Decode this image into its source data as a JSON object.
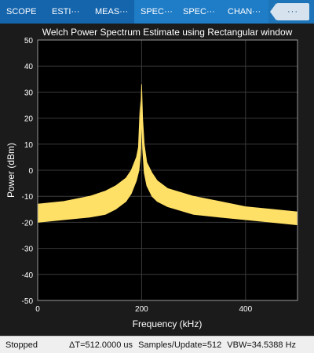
{
  "toolstrip": {
    "tabs": [
      {
        "label": "SCOPE"
      },
      {
        "label": "ESTI···"
      },
      {
        "label": "MEAS···"
      },
      {
        "label": "SPEC···"
      },
      {
        "label": "SPEC···"
      },
      {
        "label": "CHAN···"
      }
    ],
    "more_label": "···"
  },
  "status": {
    "state": "Stopped",
    "delta_t": "ΔT=512.0000 us",
    "samples": "Samples/Update=512",
    "vbw": "VBW=34.5388 Hz"
  },
  "colors": {
    "trace": "#ffe066",
    "axes_bg": "#000000",
    "grid": "#3a3a3a",
    "toolstrip": "#1e74b8"
  },
  "chart_data": {
    "type": "line",
    "title": "Welch Power Spectrum Estimate using Rectangular window",
    "xlabel": "Frequency (kHz)",
    "ylabel": "Power (dBm)",
    "xlim": [
      0,
      500
    ],
    "ylim": [
      -50,
      50
    ],
    "xticks": [
      0,
      200,
      400
    ],
    "yticks": [
      -50,
      -40,
      -30,
      -20,
      -10,
      0,
      10,
      20,
      30,
      40,
      50
    ],
    "grid": true,
    "series": [
      {
        "upper": {
          "x": [
            0,
            50,
            100,
            130,
            150,
            170,
            180,
            190,
            195,
            198,
            200,
            202,
            205,
            210,
            220,
            230,
            250,
            300,
            350,
            400,
            450,
            500
          ],
          "y": [
            -13,
            -12,
            -10,
            -8,
            -6,
            -3,
            0,
            5,
            10,
            21,
            33,
            20,
            10,
            3,
            -1,
            -4,
            -7,
            -10,
            -12,
            -14,
            -15,
            -16
          ]
        },
        "lower": {
          "x": [
            0,
            50,
            100,
            130,
            150,
            170,
            180,
            190,
            195,
            198,
            200,
            202,
            205,
            210,
            220,
            230,
            250,
            300,
            350,
            400,
            450,
            500
          ],
          "y": [
            -20,
            -19,
            -18,
            -17,
            -15,
            -12,
            -9,
            -4,
            0,
            6,
            20,
            8,
            -1,
            -6,
            -10,
            -12,
            -14,
            -17,
            -18,
            -19,
            -20,
            -21
          ]
        }
      }
    ]
  }
}
